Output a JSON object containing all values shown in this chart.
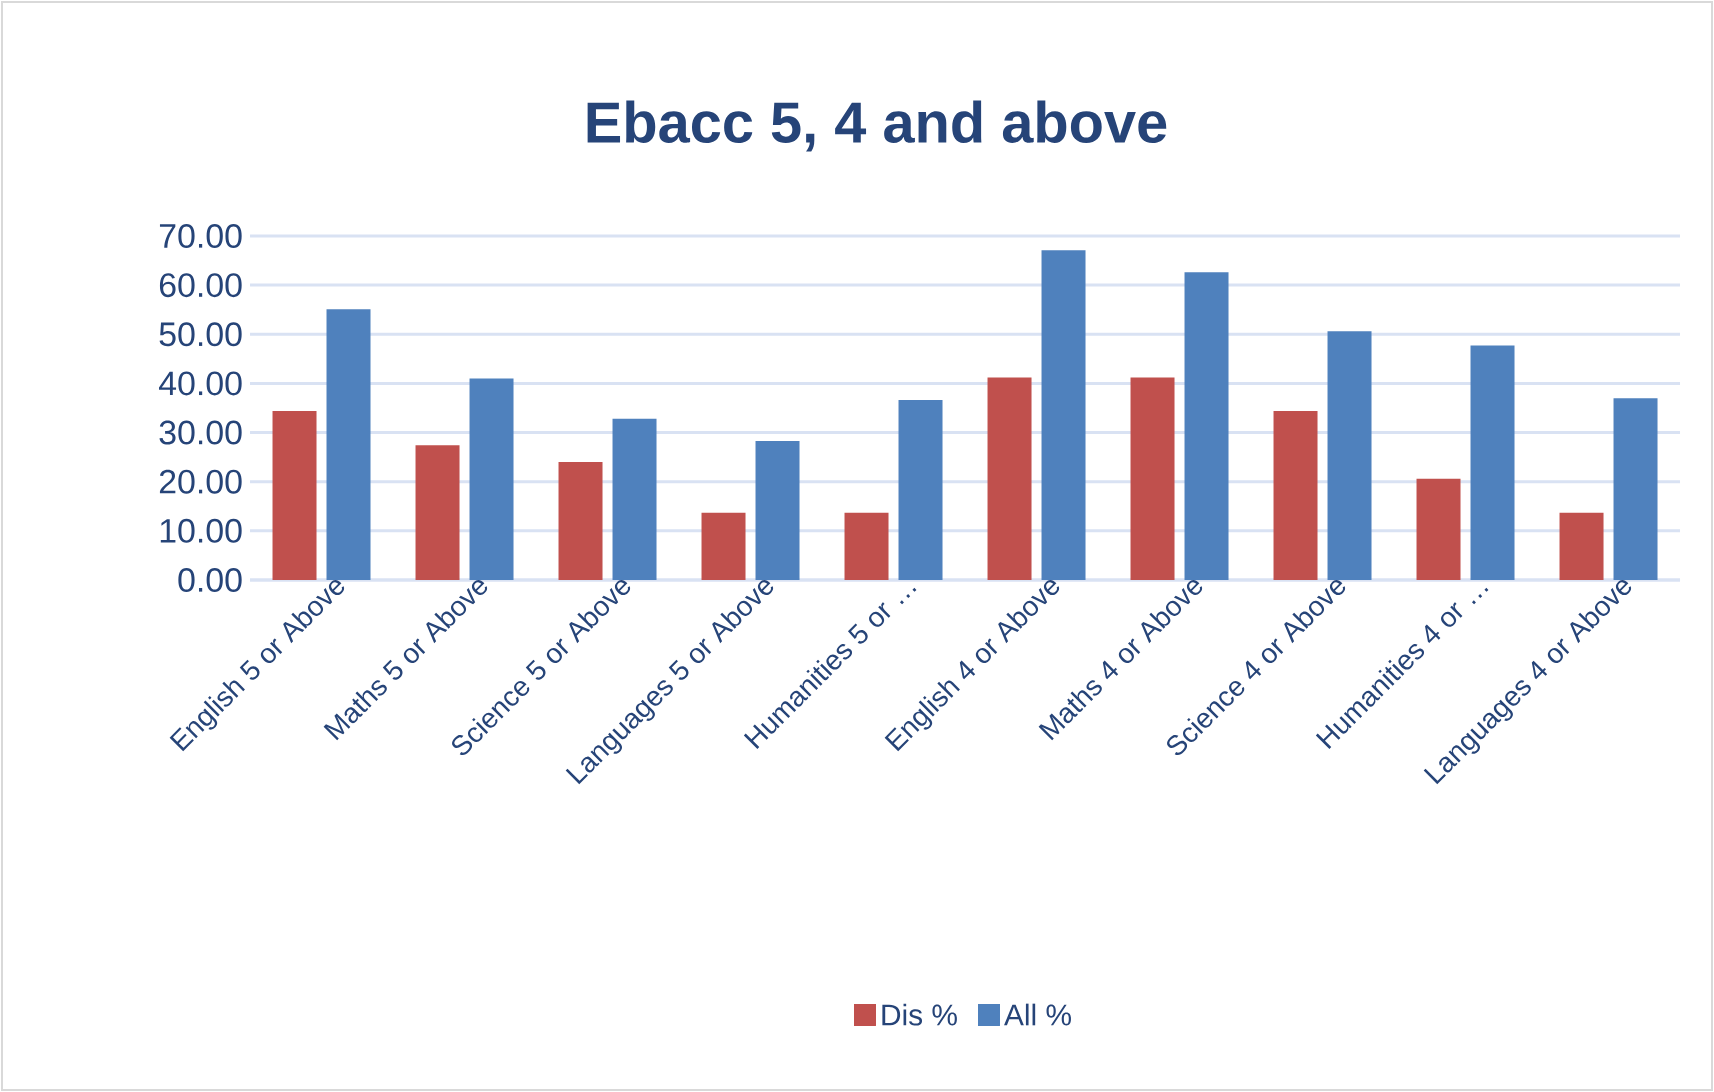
{
  "chart_data": {
    "type": "bar",
    "title": "Ebacc 5, 4 and above",
    "categories": [
      "English 5 or Above",
      "Maths 5 or Above",
      "Science 5 or Above",
      "Languages 5 or Above",
      "Humanities 5 or …",
      "English 4 or Above",
      "Maths 4 or Above",
      "Science 4 or Above",
      "Humanities 4 or …",
      "Languages 4 or Above"
    ],
    "series": [
      {
        "name": "Dis %",
        "color": "#c0504d",
        "values": [
          34.4,
          27.4,
          24.0,
          13.7,
          13.7,
          41.2,
          41.2,
          34.4,
          20.6,
          13.7
        ]
      },
      {
        "name": "All %",
        "color": "#4f81bd",
        "values": [
          55.1,
          41.0,
          32.8,
          28.3,
          36.6,
          67.1,
          62.6,
          50.6,
          47.7,
          37.0
        ]
      }
    ],
    "ylim": [
      0,
      70
    ],
    "yticks": [
      {
        "value": 0,
        "label": "0.00"
      },
      {
        "value": 10,
        "label": "10.00"
      },
      {
        "value": 20,
        "label": "20.00"
      },
      {
        "value": 30,
        "label": "30.00"
      },
      {
        "value": 40,
        "label": "40.00"
      },
      {
        "value": 50,
        "label": "50.00"
      },
      {
        "value": 60,
        "label": "60.00"
      },
      {
        "value": 70,
        "label": "70.00"
      }
    ],
    "grid": "y",
    "legend": "bottom"
  }
}
